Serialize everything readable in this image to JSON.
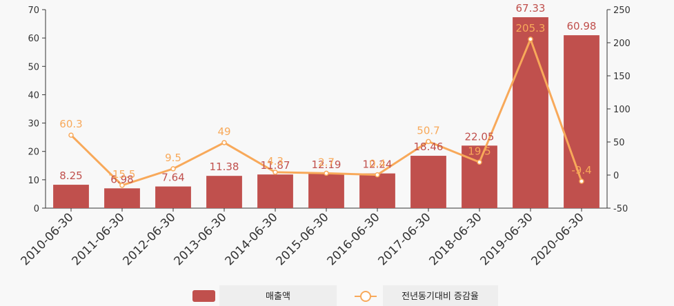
{
  "chart_data": {
    "type": "bar",
    "categories": [
      "2010-06-30",
      "2011-06-30",
      "2012-06-30",
      "2013-06-30",
      "2014-06-30",
      "2015-06-30",
      "2016-06-30",
      "2017-06-30",
      "2018-06-30",
      "2019-06-30",
      "2020-06-30"
    ],
    "series": [
      {
        "name": "매출액",
        "type": "bar",
        "axis": "left",
        "color": "#c0504d",
        "values": [
          8.25,
          6.98,
          7.64,
          11.38,
          11.87,
          12.19,
          12.24,
          18.46,
          22.05,
          67.33,
          60.98
        ],
        "labels": [
          "8.25",
          "6.98",
          "7.64",
          "11.38",
          "11.87",
          "12.19",
          "12.24",
          "18.46",
          "22.05",
          "67.33",
          "60.98"
        ]
      },
      {
        "name": "전년동기대비 증감율",
        "type": "line",
        "axis": "right",
        "color": "#f8a95a",
        "values": [
          60.3,
          -15.5,
          9.5,
          49,
          4.3,
          2.7,
          0.4,
          50.7,
          19.5,
          205.3,
          -9.4
        ],
        "labels": [
          "60.3",
          "-15.5",
          "9.5",
          "49",
          "4.3",
          "2.7",
          "0.4",
          "50.7",
          "19.5",
          "205.3",
          "-9.4"
        ]
      }
    ],
    "y_left": {
      "min": 0,
      "max": 70,
      "ticks": [
        0,
        10,
        20,
        30,
        40,
        50,
        60,
        70
      ]
    },
    "y_right": {
      "min": -50,
      "max": 250,
      "ticks": [
        -50,
        0,
        50,
        100,
        150,
        200,
        250
      ]
    },
    "legend": {
      "position": "bottom"
    },
    "grid": false
  }
}
